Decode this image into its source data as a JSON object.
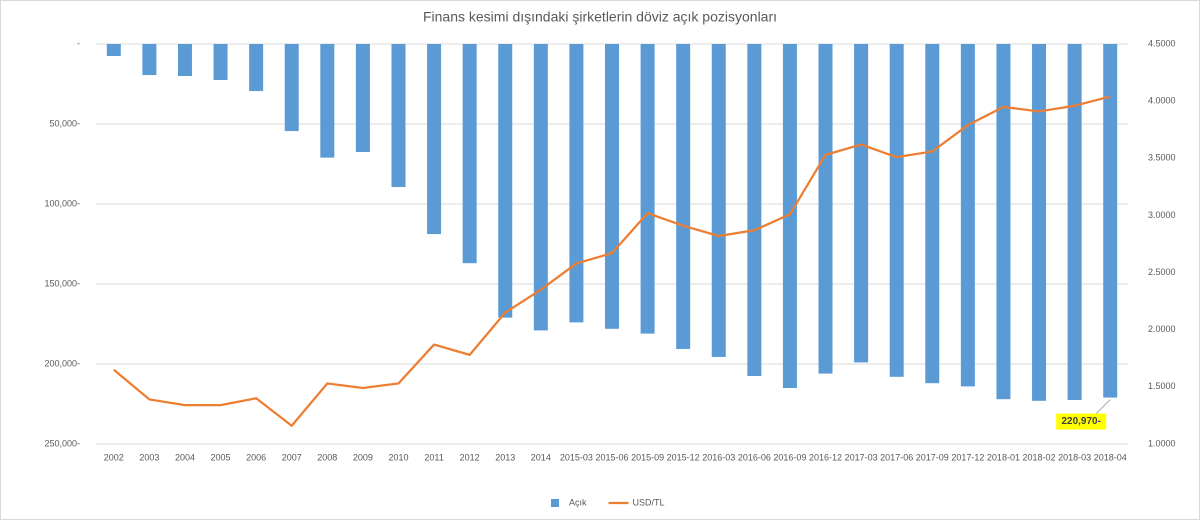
{
  "chart_data": {
    "type": "bar_line",
    "title": "Finans kesimi dışındaki şirketlerin döviz açık pozisyonları",
    "categories": [
      "2002",
      "2003",
      "2004",
      "2005",
      "2006",
      "2007",
      "2008",
      "2009",
      "2010",
      "2011",
      "2012",
      "2013",
      "2014",
      "2015-03",
      "2015-06",
      "2015-09",
      "2015-12",
      "2016-03",
      "2016-06",
      "2016-09",
      "2016-12",
      "2017-03",
      "2017-06",
      "2017-09",
      "2017-12",
      "2018-01",
      "2018-02",
      "2018-03",
      "2018-04"
    ],
    "series": [
      {
        "name": "Açık",
        "color": "#5b9bd5",
        "axis": "y",
        "values": [
          -7500,
          -19400,
          -20000,
          -22500,
          -29400,
          -54400,
          -71000,
          -67500,
          -89400,
          -118800,
          -137000,
          -171000,
          -179000,
          -174000,
          -178000,
          -181000,
          -190600,
          -195600,
          -207500,
          -215000,
          -206000,
          -199000,
          -208000,
          -212000,
          -214000,
          -222000,
          -223000,
          -222500,
          -220970
        ],
        "value_labels": [
          null,
          null,
          null,
          null,
          null,
          null,
          null,
          null,
          null,
          null,
          null,
          null,
          null,
          null,
          null,
          null,
          null,
          null,
          null,
          null,
          null,
          null,
          null,
          null,
          null,
          null,
          null,
          null,
          "220,970-"
        ]
      },
      {
        "name": "USD/TL",
        "color": "#ed7d31",
        "axis": "y2",
        "values": [
          1.65,
          1.39,
          1.34,
          1.34,
          1.4,
          1.16,
          1.53,
          1.49,
          1.53,
          1.87,
          1.78,
          2.15,
          2.35,
          2.58,
          2.67,
          3.02,
          2.91,
          2.82,
          2.87,
          3.01,
          3.53,
          3.62,
          3.51,
          3.56,
          3.79,
          3.95,
          3.91,
          3.96,
          4.04
        ]
      }
    ],
    "ylim": [
      -250000,
      0
    ],
    "yticks": [
      {
        "value": 0,
        "label": "-"
      },
      {
        "value": -50000,
        "label": "50,000-"
      },
      {
        "value": -100000,
        "label": "100,000-"
      },
      {
        "value": -150000,
        "label": "150,000-"
      },
      {
        "value": -200000,
        "label": "200,000-"
      },
      {
        "value": -250000,
        "label": "250,000-"
      }
    ],
    "y2lim": [
      1,
      4.5
    ],
    "y2ticks": [
      {
        "value": 1,
        "label": "1.0000"
      },
      {
        "value": 1.5,
        "label": "1.5000"
      },
      {
        "value": 2,
        "label": "2.0000"
      },
      {
        "value": 2.5,
        "label": "2.5000"
      },
      {
        "value": 3,
        "label": "3.0000"
      },
      {
        "value": 3.5,
        "label": "3.5000"
      },
      {
        "value": 4,
        "label": "4.0000"
      },
      {
        "value": 4.5,
        "label": "4.5000"
      }
    ],
    "grid": true,
    "legend": "bottom"
  }
}
